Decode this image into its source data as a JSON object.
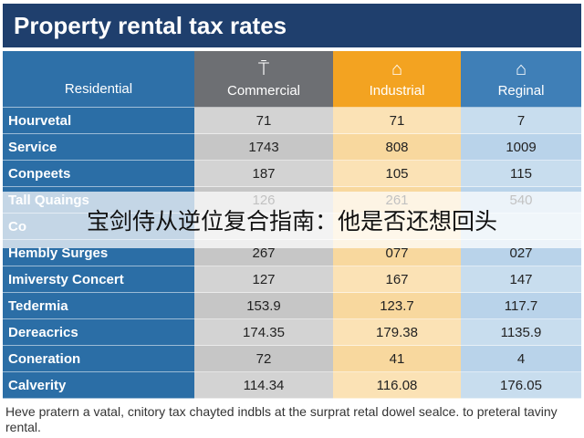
{
  "title": "Property rental tax rates",
  "headers": {
    "residential": "Residential",
    "commercial": "Commercial",
    "industrial": "Industrial",
    "regional": "Reginal"
  },
  "rows": [
    {
      "label": "Hourvetal",
      "commercial": "71",
      "industrial": "71",
      "regional": "7"
    },
    {
      "label": "Service",
      "commercial": "1743",
      "industrial": "808",
      "regional": "1009"
    },
    {
      "label": "Conpeets",
      "commercial": "187",
      "industrial": "105",
      "regional": "115"
    },
    {
      "label": "Tall Quaings",
      "commercial": "126",
      "industrial": "261",
      "regional": "540"
    },
    {
      "label": "Co",
      "commercial": "",
      "industrial": "",
      "regional": ""
    },
    {
      "label": "Hembly Surges",
      "commercial": "267",
      "industrial": "077",
      "regional": "027"
    },
    {
      "label": "Imiversty Concert",
      "commercial": "127",
      "industrial": "167",
      "regional": "147"
    },
    {
      "label": "Tedermia",
      "commercial": "153.9",
      "industrial": "123.7",
      "regional": "117.7"
    },
    {
      "label": "Dereacrics",
      "commercial": "174.35",
      "industrial": "179.38",
      "regional": "1135.9"
    },
    {
      "label": "Coneration",
      "commercial": "72",
      "industrial": "41",
      "regional": "4"
    },
    {
      "label": "Calverity",
      "commercial": "114.34",
      "industrial": "116.08",
      "regional": "176.05"
    }
  ],
  "overlay_text": "宝剑侍从逆位复合指南：他是否还想回头",
  "footnote": "Heve pratern a vatal, cnitory tax chayted indbls at the surprat retal dowel sealce. to preteral taviny rental.",
  "icons": {
    "commercial": "tower-icon",
    "industrial": "house-icon",
    "regional": "building-icon"
  },
  "colors": {
    "title_bg": "#1f3f6d",
    "commercial": "#6d6f73",
    "industrial": "#f3a321",
    "regional": "#3f7fb7"
  }
}
